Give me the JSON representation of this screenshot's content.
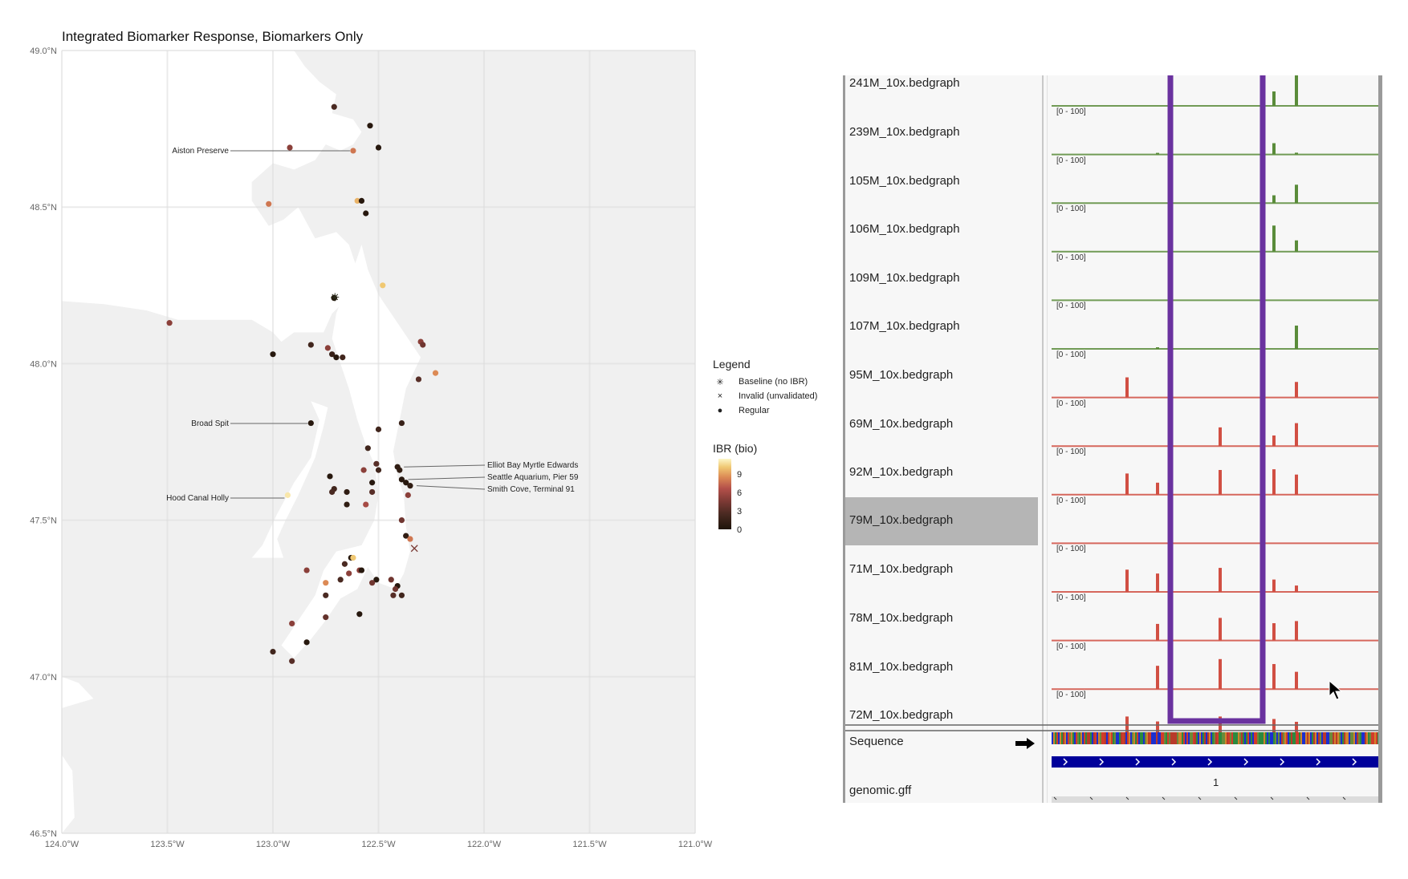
{
  "map": {
    "title": "Integrated Biomarker Response, Biomarkers Only",
    "lat_ticks": [
      "49.0°N",
      "48.5°N",
      "48.0°N",
      "47.5°N",
      "47.0°N",
      "46.5°N"
    ],
    "lon_ticks": [
      "124.0°W",
      "123.5°W",
      "123.0°W",
      "122.5°W",
      "122.0°W",
      "121.5°W",
      "121.0°W"
    ],
    "colors": {
      "land": "#f0f0f0",
      "water": "#ffffff",
      "grid": "#dedede"
    },
    "site_labels": [
      {
        "name": "Aiston Preserve"
      },
      {
        "name": "Broad Spit"
      },
      {
        "name": "Hood Canal Holly"
      },
      {
        "name": "Elliot Bay Myrtle Edwards"
      },
      {
        "name": "Seattle Aquarium, Pier 59"
      },
      {
        "name": "Smith Cove, Terminal 91"
      }
    ],
    "legend": {
      "title": "Legend",
      "items": [
        {
          "symbol": "asterisk-icon",
          "label": "Baseline (no IBR)"
        },
        {
          "symbol": "x-icon",
          "label": "Invalid (unvalidated)"
        },
        {
          "symbol": "dot-icon",
          "label": "Regular"
        }
      ]
    },
    "colorbar": {
      "title": "IBR (bio)",
      "ticks": [
        "9",
        "6",
        "3",
        "0"
      ]
    }
  },
  "chart_data": {
    "type": "scatter",
    "title": "Integrated Biomarker Response, Biomarkers Only",
    "xlabel": "",
    "ylabel": "",
    "xlim": [
      -124.0,
      -121.0
    ],
    "ylim": [
      46.5,
      49.0
    ],
    "grid": true,
    "legend_placement": "right",
    "colorbar": {
      "label": "IBR (bio)",
      "range": [
        0,
        11
      ],
      "ticks": [
        0,
        3,
        6,
        9
      ]
    },
    "points": [
      {
        "lon": -122.71,
        "lat": 48.82,
        "ibr": 2.5
      },
      {
        "lon": -122.54,
        "lat": 48.76,
        "ibr": 0.5
      },
      {
        "lon": -122.5,
        "lat": 48.69,
        "ibr": 0.5
      },
      {
        "lon": -122.92,
        "lat": 48.69,
        "ibr": 5
      },
      {
        "lon": -122.62,
        "lat": 48.68,
        "ibr": 7.5,
        "label": "Aiston Preserve"
      },
      {
        "lon": -123.02,
        "lat": 48.51,
        "ibr": 7.5
      },
      {
        "lon": -122.6,
        "lat": 48.52,
        "ibr": 9
      },
      {
        "lon": -122.58,
        "lat": 48.52,
        "ibr": 0.5
      },
      {
        "lon": -122.56,
        "lat": 48.48,
        "ibr": 0.5
      },
      {
        "lon": -122.48,
        "lat": 48.25,
        "ibr": 9.5
      },
      {
        "lon": -122.71,
        "lat": 48.21,
        "ibr": 0,
        "kind": "baseline"
      },
      {
        "lon": -123.49,
        "lat": 48.13,
        "ibr": 5
      },
      {
        "lon": -122.3,
        "lat": 48.07,
        "ibr": 5
      },
      {
        "lon": -122.29,
        "lat": 48.06,
        "ibr": 4
      },
      {
        "lon": -122.82,
        "lat": 48.06,
        "ibr": 2
      },
      {
        "lon": -122.74,
        "lat": 48.05,
        "ibr": 5
      },
      {
        "lon": -122.72,
        "lat": 48.03,
        "ibr": 1.5
      },
      {
        "lon": -122.7,
        "lat": 48.02,
        "ibr": 0.5
      },
      {
        "lon": -122.67,
        "lat": 48.02,
        "ibr": 2
      },
      {
        "lon": -123.0,
        "lat": 48.03,
        "ibr": 0.5
      },
      {
        "lon": -122.23,
        "lat": 47.97,
        "ibr": 8
      },
      {
        "lon": -122.31,
        "lat": 47.95,
        "ibr": 3
      },
      {
        "lon": -122.82,
        "lat": 47.81,
        "ibr": 0.5,
        "label": "Broad Spit"
      },
      {
        "lon": -122.39,
        "lat": 47.81,
        "ibr": 1.5
      },
      {
        "lon": -122.5,
        "lat": 47.79,
        "ibr": 2
      },
      {
        "lon": -122.55,
        "lat": 47.73,
        "ibr": 2
      },
      {
        "lon": -122.51,
        "lat": 47.68,
        "ibr": 3
      },
      {
        "lon": -122.57,
        "lat": 47.66,
        "ibr": 5
      },
      {
        "lon": -122.5,
        "lat": 47.66,
        "ibr": 2
      },
      {
        "lon": -122.41,
        "lat": 47.67,
        "ibr": 1,
        "label": "Elliot Bay Myrtle Edwards"
      },
      {
        "lon": -122.4,
        "lat": 47.66,
        "ibr": 1
      },
      {
        "lon": -122.73,
        "lat": 47.64,
        "ibr": 0.5
      },
      {
        "lon": -122.53,
        "lat": 47.62,
        "ibr": 0.5
      },
      {
        "lon": -122.39,
        "lat": 47.63,
        "ibr": 0.5,
        "label": "Seattle Aquarium, Pier 59"
      },
      {
        "lon": -122.37,
        "lat": 47.62,
        "ibr": 0.5
      },
      {
        "lon": -122.35,
        "lat": 47.61,
        "ibr": 1,
        "label": "Smith Cove, Terminal 91"
      },
      {
        "lon": -122.71,
        "lat": 47.6,
        "ibr": 2
      },
      {
        "lon": -122.72,
        "lat": 47.59,
        "ibr": 2.5
      },
      {
        "lon": -122.65,
        "lat": 47.59,
        "ibr": 1
      },
      {
        "lon": -122.53,
        "lat": 47.59,
        "ibr": 3
      },
      {
        "lon": -122.36,
        "lat": 47.58,
        "ibr": 5
      },
      {
        "lon": -122.56,
        "lat": 47.55,
        "ibr": 6
      },
      {
        "lon": -122.65,
        "lat": 47.55,
        "ibr": 1
      },
      {
        "lon": -122.93,
        "lat": 47.58,
        "ibr": 10.5,
        "label": "Hood Canal Holly"
      },
      {
        "lon": -122.39,
        "lat": 47.5,
        "ibr": 4
      },
      {
        "lon": -122.37,
        "lat": 47.45,
        "ibr": 1
      },
      {
        "lon": -122.35,
        "lat": 47.44,
        "ibr": 7.5
      },
      {
        "lon": -122.33,
        "lat": 47.41,
        "ibr": 0,
        "kind": "invalid"
      },
      {
        "lon": -122.63,
        "lat": 47.38,
        "ibr": 0.5
      },
      {
        "lon": -122.62,
        "lat": 47.38,
        "ibr": 9.5
      },
      {
        "lon": -122.84,
        "lat": 47.34,
        "ibr": 5
      },
      {
        "lon": -122.66,
        "lat": 47.36,
        "ibr": 2.5
      },
      {
        "lon": -122.64,
        "lat": 47.33,
        "ibr": 5
      },
      {
        "lon": -122.59,
        "lat": 47.34,
        "ibr": 5
      },
      {
        "lon": -122.58,
        "lat": 47.34,
        "ibr": 0.5
      },
      {
        "lon": -122.68,
        "lat": 47.31,
        "ibr": 2.5
      },
      {
        "lon": -122.75,
        "lat": 47.3,
        "ibr": 8
      },
      {
        "lon": -122.51,
        "lat": 47.31,
        "ibr": 0.5
      },
      {
        "lon": -122.53,
        "lat": 47.3,
        "ibr": 4
      },
      {
        "lon": -122.44,
        "lat": 47.31,
        "ibr": 4
      },
      {
        "lon": -122.41,
        "lat": 47.29,
        "ibr": 0.5
      },
      {
        "lon": -122.42,
        "lat": 47.28,
        "ibr": 4
      },
      {
        "lon": -122.43,
        "lat": 47.26,
        "ibr": 3
      },
      {
        "lon": -122.39,
        "lat": 47.26,
        "ibr": 2
      },
      {
        "lon": -122.75,
        "lat": 47.26,
        "ibr": 2.5
      },
      {
        "lon": -122.75,
        "lat": 47.19,
        "ibr": 3.5
      },
      {
        "lon": -122.59,
        "lat": 47.2,
        "ibr": 0.5
      },
      {
        "lon": -122.91,
        "lat": 47.17,
        "ibr": 5
      },
      {
        "lon": -122.84,
        "lat": 47.11,
        "ibr": 0.5
      },
      {
        "lon": -123.0,
        "lat": 47.08,
        "ibr": 2
      },
      {
        "lon": -122.91,
        "lat": 47.05,
        "ibr": 3
      }
    ]
  },
  "igv": {
    "tracks": [
      {
        "name": "241M_10x.bedgraph",
        "range": "",
        "color": "#5a8c3a",
        "bars": [
          0,
          0,
          0,
          45,
          100
        ],
        "selected": false
      },
      {
        "name": "239M_10x.bedgraph",
        "range": "[0 - 100]",
        "color": "#5a8c3a",
        "bars": [
          0,
          3,
          0,
          32,
          5
        ],
        "selected": false
      },
      {
        "name": "105M_10x.bedgraph",
        "range": "[0 - 100]",
        "color": "#5a8c3a",
        "bars": [
          0,
          0,
          0,
          22,
          52
        ],
        "selected": false
      },
      {
        "name": "106M_10x.bedgraph",
        "range": "[0 - 100]",
        "color": "#5a8c3a",
        "bars": [
          0,
          0,
          0,
          74,
          32
        ],
        "selected": false
      },
      {
        "name": "109M_10x.bedgraph",
        "range": "[0 - 100]",
        "color": "#5a8c3a",
        "bars": [
          0,
          0,
          0,
          0,
          0
        ],
        "selected": false
      },
      {
        "name": "107M_10x.bedgraph",
        "range": "[0 - 100]",
        "color": "#5a8c3a",
        "bars": [
          0,
          3,
          0,
          0,
          66
        ],
        "selected": false
      },
      {
        "name": "95M_10x.bedgraph",
        "range": "[0 - 100]",
        "color": "#d14f43",
        "bars": [
          57,
          0,
          0,
          0,
          44
        ],
        "selected": false
      },
      {
        "name": "69M_10x.bedgraph",
        "range": "[0 - 100]",
        "color": "#d14f43",
        "bars": [
          0,
          0,
          53,
          30,
          65
        ],
        "selected": false
      },
      {
        "name": "92M_10x.bedgraph",
        "range": "[0 - 100]",
        "color": "#d14f43",
        "bars": [
          60,
          34,
          70,
          72,
          57
        ],
        "selected": false
      },
      {
        "name": "79M_10x.bedgraph",
        "range": "[0 - 100]",
        "color": "#d14f43",
        "bars": [
          0,
          0,
          0,
          0,
          0
        ],
        "selected": true
      },
      {
        "name": "71M_10x.bedgraph",
        "range": "[0 - 100]",
        "color": "#d14f43",
        "bars": [
          63,
          52,
          68,
          35,
          18
        ],
        "selected": false
      },
      {
        "name": "78M_10x.bedgraph",
        "range": "[0 - 100]",
        "color": "#d14f43",
        "bars": [
          0,
          47,
          64,
          49,
          55
        ],
        "selected": false
      },
      {
        "name": "81M_10x.bedgraph",
        "range": "[0 - 100]",
        "color": "#d14f43",
        "bars": [
          0,
          66,
          85,
          71,
          49
        ],
        "selected": false
      },
      {
        "name": "72M_10x.bedgraph",
        "range": "[0 - 100]",
        "color": "#d14f43",
        "bars": [
          60,
          46,
          60,
          53,
          45
        ],
        "selected": false
      }
    ],
    "sequence_label": "Sequence",
    "annotation_label": "genomic.gff",
    "feature_number": "1",
    "highlight_color": "#6a329f",
    "arrow_icon": "right-arrow-icon"
  }
}
